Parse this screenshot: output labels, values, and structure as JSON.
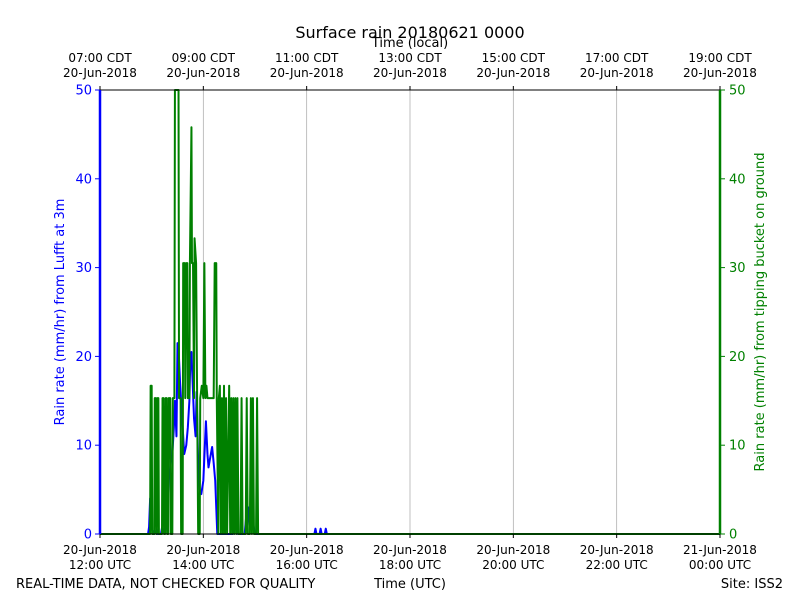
{
  "chart_data": {
    "type": "line",
    "title": "Surface rain 20180621 0000",
    "top_axis_label": "Time (local)",
    "xlabel": "Time (UTC)",
    "ylabel_left": "Rain rate (mm/hr) from Lufft at 3m",
    "ylabel_right": "Rain rate (mm/hr) from tipping bucket on ground",
    "ylim": [
      0,
      50
    ],
    "y_ticks": [
      0,
      10,
      20,
      30,
      40,
      50
    ],
    "x_range_hours": [
      12,
      24
    ],
    "x_ticks_utc": [
      {
        "hour": 12,
        "date": "20-Jun-2018",
        "time": "12:00 UTC"
      },
      {
        "hour": 14,
        "date": "20-Jun-2018",
        "time": "14:00 UTC"
      },
      {
        "hour": 16,
        "date": "20-Jun-2018",
        "time": "16:00 UTC"
      },
      {
        "hour": 18,
        "date": "20-Jun-2018",
        "time": "18:00 UTC"
      },
      {
        "hour": 20,
        "date": "20-Jun-2018",
        "time": "20:00 UTC"
      },
      {
        "hour": 22,
        "date": "20-Jun-2018",
        "time": "22:00 UTC"
      },
      {
        "hour": 24,
        "date": "21-Jun-2018",
        "time": "00:00 UTC"
      }
    ],
    "x_ticks_local": [
      {
        "hour": 12,
        "time": "07:00 CDT",
        "date": "20-Jun-2018"
      },
      {
        "hour": 14,
        "time": "09:00 CDT",
        "date": "20-Jun-2018"
      },
      {
        "hour": 16,
        "time": "11:00 CDT",
        "date": "20-Jun-2018"
      },
      {
        "hour": 18,
        "time": "13:00 CDT",
        "date": "20-Jun-2018"
      },
      {
        "hour": 20,
        "time": "15:00 CDT",
        "date": "20-Jun-2018"
      },
      {
        "hour": 22,
        "time": "17:00 CDT",
        "date": "20-Jun-2018"
      },
      {
        "hour": 24,
        "time": "19:00 CDT",
        "date": "20-Jun-2018"
      }
    ],
    "grid": "vertical",
    "series": [
      {
        "axis": "left",
        "color": "#0000ff",
        "points": [
          [
            12.0,
            0
          ],
          [
            12.93,
            0
          ],
          [
            12.95,
            0.8
          ],
          [
            12.97,
            4
          ],
          [
            13.0,
            0.5
          ],
          [
            13.05,
            0
          ],
          [
            13.1,
            0.5
          ],
          [
            13.12,
            0
          ],
          [
            13.18,
            0
          ],
          [
            13.2,
            0.7
          ],
          [
            13.25,
            0
          ],
          [
            13.28,
            1.0
          ],
          [
            13.3,
            3
          ],
          [
            13.33,
            6
          ],
          [
            13.37,
            8
          ],
          [
            13.4,
            9
          ],
          [
            13.43,
            12
          ],
          [
            13.45,
            15
          ],
          [
            13.48,
            11
          ],
          [
            13.5,
            21.5
          ],
          [
            13.52,
            21
          ],
          [
            13.55,
            17
          ],
          [
            13.58,
            14
          ],
          [
            13.6,
            12
          ],
          [
            13.63,
            9
          ],
          [
            13.67,
            10
          ],
          [
            13.7,
            12
          ],
          [
            13.73,
            15
          ],
          [
            13.75,
            20
          ],
          [
            13.77,
            20.5
          ],
          [
            13.8,
            16
          ],
          [
            13.82,
            13
          ],
          [
            13.85,
            11
          ],
          [
            13.87,
            16
          ],
          [
            13.9,
            8
          ],
          [
            13.93,
            5
          ],
          [
            13.96,
            4.5
          ],
          [
            14.0,
            6
          ],
          [
            14.03,
            10
          ],
          [
            14.05,
            12.7
          ],
          [
            14.08,
            9
          ],
          [
            14.1,
            7.5
          ],
          [
            14.13,
            8.5
          ],
          [
            14.17,
            9.8
          ],
          [
            14.2,
            8
          ],
          [
            14.23,
            6
          ],
          [
            14.27,
            0
          ],
          [
            14.57,
            0
          ],
          [
            14.6,
            5
          ],
          [
            14.63,
            9.5
          ],
          [
            14.67,
            0
          ],
          [
            14.8,
            0
          ],
          [
            14.83,
            2
          ],
          [
            14.87,
            3
          ],
          [
            14.9,
            1
          ],
          [
            14.93,
            3
          ],
          [
            14.97,
            1
          ],
          [
            15.0,
            0
          ],
          [
            16.15,
            0
          ],
          [
            16.17,
            0.6
          ],
          [
            16.19,
            0
          ],
          [
            16.25,
            0
          ],
          [
            16.27,
            0.6
          ],
          [
            16.29,
            0
          ],
          [
            16.35,
            0
          ],
          [
            16.37,
            0.6
          ],
          [
            16.39,
            0
          ],
          [
            24.0,
            0
          ]
        ]
      },
      {
        "axis": "right",
        "color": "#008000",
        "points": [
          [
            12.0,
            0
          ],
          [
            12.97,
            0
          ],
          [
            12.98,
            16.7
          ],
          [
            13.0,
            16.7
          ],
          [
            13.01,
            0
          ],
          [
            13.05,
            0
          ],
          [
            13.06,
            15.3
          ],
          [
            13.08,
            15.3
          ],
          [
            13.09,
            0
          ],
          [
            13.1,
            0
          ],
          [
            13.11,
            15.3
          ],
          [
            13.13,
            15.3
          ],
          [
            13.14,
            0
          ],
          [
            13.2,
            0
          ],
          [
            13.21,
            15.3
          ],
          [
            13.23,
            15.3
          ],
          [
            13.24,
            0
          ],
          [
            13.26,
            0
          ],
          [
            13.27,
            15.3
          ],
          [
            13.29,
            15.3
          ],
          [
            13.3,
            0
          ],
          [
            13.32,
            0
          ],
          [
            13.33,
            15.3
          ],
          [
            13.36,
            15.3
          ],
          [
            13.37,
            0
          ],
          [
            13.4,
            0
          ],
          [
            13.41,
            15.3
          ],
          [
            13.44,
            15.3
          ],
          [
            13.45,
            50
          ],
          [
            13.52,
            50
          ],
          [
            13.53,
            15.3
          ],
          [
            13.56,
            15.3
          ],
          [
            13.57,
            0
          ],
          [
            13.6,
            0
          ],
          [
            13.61,
            30.5
          ],
          [
            13.64,
            30.5
          ],
          [
            13.65,
            15.3
          ],
          [
            13.67,
            30.5
          ],
          [
            13.69,
            30.5
          ],
          [
            13.7,
            15.3
          ],
          [
            13.72,
            15.3
          ],
          [
            13.73,
            15.3
          ],
          [
            13.74,
            30.5
          ],
          [
            13.77,
            45.8
          ],
          [
            13.78,
            30.5
          ],
          [
            13.8,
            30.5
          ],
          [
            13.82,
            15.3
          ],
          [
            13.83,
            33.3
          ],
          [
            13.86,
            30.5
          ],
          [
            13.88,
            15.3
          ],
          [
            13.9,
            0
          ],
          [
            13.93,
            0
          ],
          [
            13.94,
            15.3
          ],
          [
            13.97,
            16.7
          ],
          [
            14.0,
            15.3
          ],
          [
            14.02,
            30.5
          ],
          [
            14.04,
            15.3
          ],
          [
            14.06,
            16.7
          ],
          [
            14.08,
            15.3
          ],
          [
            14.2,
            15.3
          ],
          [
            14.22,
            30.5
          ],
          [
            14.25,
            30.5
          ],
          [
            14.26,
            15.3
          ],
          [
            14.29,
            0
          ],
          [
            14.3,
            15.3
          ],
          [
            14.32,
            16.7
          ],
          [
            14.34,
            0
          ],
          [
            14.36,
            15.3
          ],
          [
            14.38,
            0
          ],
          [
            14.4,
            16.7
          ],
          [
            14.42,
            0
          ],
          [
            14.44,
            15.3
          ],
          [
            14.46,
            0
          ],
          [
            14.5,
            16.7
          ],
          [
            14.52,
            0
          ],
          [
            14.54,
            15.3
          ],
          [
            14.56,
            0
          ],
          [
            14.58,
            15.3
          ],
          [
            14.6,
            0
          ],
          [
            14.62,
            15.3
          ],
          [
            14.64,
            0
          ],
          [
            14.66,
            15.3
          ],
          [
            14.68,
            0
          ],
          [
            14.72,
            0
          ],
          [
            14.74,
            15.3
          ],
          [
            14.76,
            0
          ],
          [
            14.82,
            0
          ],
          [
            14.84,
            15.3
          ],
          [
            14.86,
            0
          ],
          [
            14.9,
            0
          ],
          [
            14.92,
            15.3
          ],
          [
            14.94,
            0
          ],
          [
            14.96,
            15.3
          ],
          [
            14.98,
            0
          ],
          [
            15.02,
            0
          ],
          [
            15.04,
            15.3
          ],
          [
            15.06,
            0
          ],
          [
            24.0,
            0
          ]
        ]
      }
    ]
  },
  "footer": {
    "left_note": "REAL-TIME DATA, NOT CHECKED FOR QUALITY",
    "site": "Site: ISS2"
  }
}
